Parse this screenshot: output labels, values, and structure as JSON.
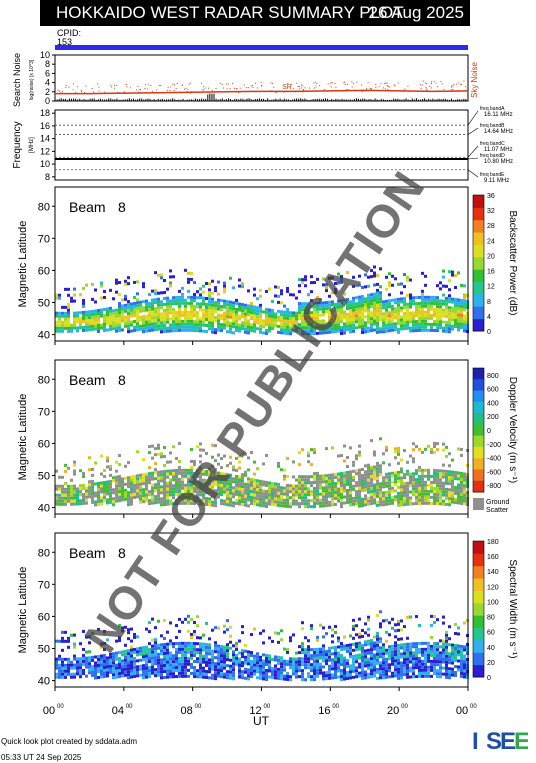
{
  "header": {
    "title": "HOKKAIDO WEST RADAR SUMMARY PLOT",
    "date": "26 Aug 2025",
    "cpid_label": "CPID:",
    "cpid_value": "153"
  },
  "colors": {
    "cpid_bar": "#2a2af0",
    "noise_line": "#d43a10",
    "title_bg": "#000000"
  },
  "chart_data": [
    {
      "type": "line",
      "panel": "noise",
      "ylabel": "Search Noise",
      "ylabel_sub": "log(noise) [x 10^3]",
      "yticks": [
        0,
        2,
        4,
        6,
        8,
        10
      ],
      "ylim": [
        0,
        10
      ],
      "series": [
        {
          "name": "Sky Noise",
          "x": [
            0,
            2,
            4,
            6,
            8,
            10,
            12,
            14,
            16,
            18,
            20,
            22,
            24
          ],
          "y": [
            1.6,
            1.6,
            1.7,
            1.8,
            1.9,
            2.0,
            2.1,
            2.1,
            2.2,
            2.3,
            2.2,
            2.1,
            2.2
          ]
        }
      ],
      "annotation": "SR",
      "series_label": "Sky Noise"
    },
    {
      "type": "line",
      "panel": "frequency",
      "ylabel": "Frequency",
      "ylabel_sub": "[MHz]",
      "yticks": [
        8,
        10,
        12,
        14,
        16,
        18
      ],
      "ylim": [
        7.5,
        18.5
      ],
      "freq_value": 10.8,
      "bands": [
        {
          "label": "freq bandA",
          "value": "16.11 MHz"
        },
        {
          "label": "freq bandB",
          "value": "14.64 MHz"
        },
        {
          "label": "freq bandC",
          "value": "11.07 MHz"
        },
        {
          "label": "freq bandD",
          "value": "10.80 MHz"
        },
        {
          "label": "freq bandE",
          "value": "9.11 MHz"
        }
      ],
      "band_freqs": [
        16.11,
        14.64,
        11.07,
        10.8,
        9.11
      ]
    },
    {
      "type": "heatmap",
      "panel": "power",
      "beam_label": "Beam",
      "beam": "8",
      "ylabel": "Magnetic Latitude",
      "yticks": [
        40,
        50,
        60,
        70,
        80
      ],
      "ylim": [
        38,
        86
      ],
      "colorbar_label": "Backscatter Power (dB)",
      "colorbar_ticks": [
        "0",
        "4",
        "8",
        "12",
        "16",
        "20",
        "24",
        "28",
        "32",
        "36"
      ],
      "colorbar_colors": [
        "#2a1fd0",
        "#2f6ff0",
        "#2fb0f0",
        "#20c890",
        "#30c030",
        "#98d830",
        "#d8e020",
        "#f0c020",
        "#f08020",
        "#e83010",
        "#c01010"
      ]
    },
    {
      "type": "heatmap",
      "panel": "velocity",
      "beam_label": "Beam",
      "beam": "8",
      "ylabel": "Magnetic Latitude",
      "yticks": [
        40,
        50,
        60,
        70,
        80
      ],
      "ylim": [
        38,
        86
      ],
      "colorbar_label": "Doppler Velocity (m s⁻¹)",
      "colorbar_ticks": [
        "800",
        "600",
        "400",
        "200",
        "0",
        "-200",
        "-400",
        "-600",
        "-800"
      ],
      "colorbar_colors": [
        "#2020b0",
        "#2050e0",
        "#2090f0",
        "#20b8d0",
        "#20c080",
        "#40c030",
        "#a0d828",
        "#e0e020",
        "#f0b020",
        "#f07020",
        "#e03010"
      ],
      "ground_label": "Ground",
      "ground_label2": "Scatter"
    },
    {
      "type": "heatmap",
      "panel": "width",
      "beam_label": "Beam",
      "beam": "8",
      "ylabel": "Magnetic Latitude",
      "yticks": [
        40,
        50,
        60,
        70,
        80
      ],
      "ylim": [
        38,
        86
      ],
      "colorbar_label": "Spectral Width (m s⁻¹)",
      "colorbar_ticks": [
        "0",
        "20",
        "40",
        "60",
        "80",
        "100",
        "120",
        "140",
        "160",
        "180"
      ],
      "colorbar_colors": [
        "#2a1fd0",
        "#2f6ff0",
        "#2fb0f0",
        "#20c890",
        "#30c030",
        "#98d830",
        "#d8e020",
        "#f0c020",
        "#f08020",
        "#e83010",
        "#c01010"
      ]
    }
  ],
  "xaxis": {
    "label": "UT",
    "ticks": [
      "00",
      "04",
      "08",
      "12",
      "16",
      "20",
      "00"
    ],
    "tick_sup": "00",
    "xlim": [
      0,
      24
    ]
  },
  "watermark": "NOT FOR PUBLICATION",
  "footer": {
    "line1": "Quick look plot created by sddata.adm",
    "line2": "05:33 UT 24 Sep 2025"
  },
  "logo": {
    "text": "ISEE",
    "colors": [
      "#1e4fa0",
      "#1e4fa0",
      "#1e4fa0",
      "#30a84a"
    ]
  }
}
